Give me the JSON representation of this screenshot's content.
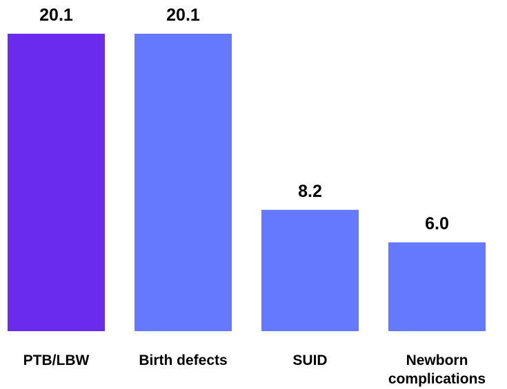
{
  "chart_data": {
    "type": "bar",
    "categories": [
      "PTB/LBW",
      "Birth defects",
      "SUID",
      "Newborn complications"
    ],
    "category_lines": [
      [
        "PTB/LBW"
      ],
      [
        "Birth defects"
      ],
      [
        "SUID"
      ],
      [
        "Newborn",
        "complications"
      ]
    ],
    "values": [
      20.1,
      20.1,
      8.2,
      6.0
    ],
    "value_labels": [
      "20.1",
      "20.1",
      "8.2",
      "6.0"
    ],
    "bar_colors": [
      "#6B2BEE",
      "#6479FF",
      "#6479FF",
      "#6479FF"
    ],
    "title": "",
    "xlabel": "",
    "ylabel": "",
    "ylim": [
      0,
      20.1
    ],
    "grid": false,
    "legend": "none"
  }
}
